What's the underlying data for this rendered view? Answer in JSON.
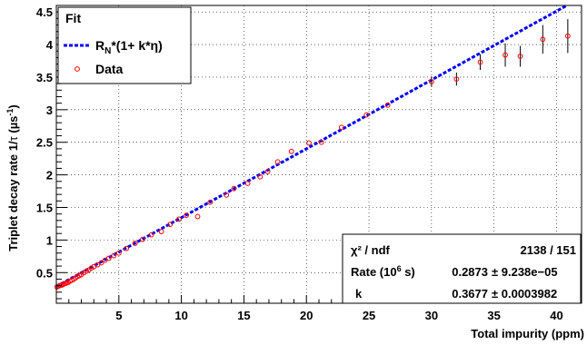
{
  "chart_data": {
    "type": "scatter",
    "ylabel_main": "Triplet decay rate 1/",
    "ylabel_tau": "τ",
    "ylabel_unit_open": " (µs",
    "ylabel_unit_exp": "-1",
    "ylabel_unit_close": ")",
    "xlabel": "Total impurity (ppm)",
    "xlim": [
      0,
      42
    ],
    "ylim": [
      0.03,
      4.6
    ],
    "x_ticks": [
      5,
      10,
      15,
      20,
      25,
      30,
      35,
      40
    ],
    "y_ticks": [
      0.5,
      1,
      1.5,
      2,
      2.5,
      3,
      3.5,
      4,
      4.5
    ],
    "grid": true,
    "legend": {
      "title": "Fit",
      "fit_label_prefix": "R",
      "fit_label_sub": "N",
      "fit_label_suffix": "*(1+ k*η)",
      "data_label": "Data",
      "placement": "top-left"
    },
    "fit": {
      "formula": "R_N*(1+k*eta)",
      "R_N": 0.2873,
      "k": 0.3677,
      "color": "#0000ff"
    },
    "stats": {
      "placement": "bottom-right",
      "chi2_label": "χ² / ndf",
      "chi2_value": "2138 / 151",
      "rate_label_prefix": "Rate (10",
      "rate_label_exp": "6",
      "rate_label_suffix": " s)",
      "rate_value": "0.2873",
      "rate_error": "± 9.238e−05",
      "k_label": "k",
      "k_value": "0.3677",
      "k_error": "± 0.0003982"
    },
    "series": [
      {
        "name": "Data",
        "marker_color": "#ff0000",
        "points": [
          {
            "x": 0.05,
            "y": 0.28
          },
          {
            "x": 0.15,
            "y": 0.29
          },
          {
            "x": 0.25,
            "y": 0.3
          },
          {
            "x": 0.35,
            "y": 0.305
          },
          {
            "x": 0.45,
            "y": 0.31
          },
          {
            "x": 0.55,
            "y": 0.32
          },
          {
            "x": 0.65,
            "y": 0.33
          },
          {
            "x": 0.75,
            "y": 0.335
          },
          {
            "x": 0.85,
            "y": 0.345
          },
          {
            "x": 0.95,
            "y": 0.35
          },
          {
            "x": 1.1,
            "y": 0.37
          },
          {
            "x": 1.25,
            "y": 0.385
          },
          {
            "x": 1.4,
            "y": 0.4
          },
          {
            "x": 1.55,
            "y": 0.42
          },
          {
            "x": 1.7,
            "y": 0.44
          },
          {
            "x": 1.85,
            "y": 0.455
          },
          {
            "x": 2.0,
            "y": 0.47
          },
          {
            "x": 2.2,
            "y": 0.5
          },
          {
            "x": 2.4,
            "y": 0.52
          },
          {
            "x": 2.6,
            "y": 0.54
          },
          {
            "x": 2.8,
            "y": 0.57
          },
          {
            "x": 3.0,
            "y": 0.59
          },
          {
            "x": 3.3,
            "y": 0.62
          },
          {
            "x": 3.6,
            "y": 0.65
          },
          {
            "x": 3.9,
            "y": 0.69
          },
          {
            "x": 4.2,
            "y": 0.72
          },
          {
            "x": 4.6,
            "y": 0.76
          },
          {
            "x": 5.0,
            "y": 0.8
          },
          {
            "x": 5.6,
            "y": 0.87
          },
          {
            "x": 6.3,
            "y": 0.95
          },
          {
            "x": 6.9,
            "y": 1.01
          },
          {
            "x": 7.6,
            "y": 1.08
          },
          {
            "x": 8.4,
            "y": 1.13
          },
          {
            "x": 9.1,
            "y": 1.24
          },
          {
            "x": 9.8,
            "y": 1.32
          },
          {
            "x": 10.4,
            "y": 1.38
          },
          {
            "x": 11.3,
            "y": 1.36
          },
          {
            "x": 12.3,
            "y": 1.58
          },
          {
            "x": 13.6,
            "y": 1.69
          },
          {
            "x": 14.2,
            "y": 1.79
          },
          {
            "x": 15.3,
            "y": 1.87
          },
          {
            "x": 16.3,
            "y": 1.97
          },
          {
            "x": 16.9,
            "y": 2.05
          },
          {
            "x": 17.7,
            "y": 2.2
          },
          {
            "x": 18.8,
            "y": 2.36
          },
          {
            "x": 20.2,
            "y": 2.49
          },
          {
            "x": 21.2,
            "y": 2.5
          },
          {
            "x": 22.8,
            "y": 2.73
          },
          {
            "x": 24.8,
            "y": 2.92
          },
          {
            "x": 26.5,
            "y": 3.07
          },
          {
            "x": 30.0,
            "y": 3.43,
            "err": 0.08
          },
          {
            "x": 32.0,
            "y": 3.47,
            "err": 0.1
          },
          {
            "x": 33.9,
            "y": 3.73,
            "err": 0.12
          },
          {
            "x": 35.9,
            "y": 3.84,
            "err": 0.18
          },
          {
            "x": 37.1,
            "y": 3.82,
            "err": 0.16
          },
          {
            "x": 38.9,
            "y": 4.08,
            "err": 0.22
          },
          {
            "x": 40.9,
            "y": 4.13,
            "err": 0.26
          }
        ]
      }
    ]
  }
}
